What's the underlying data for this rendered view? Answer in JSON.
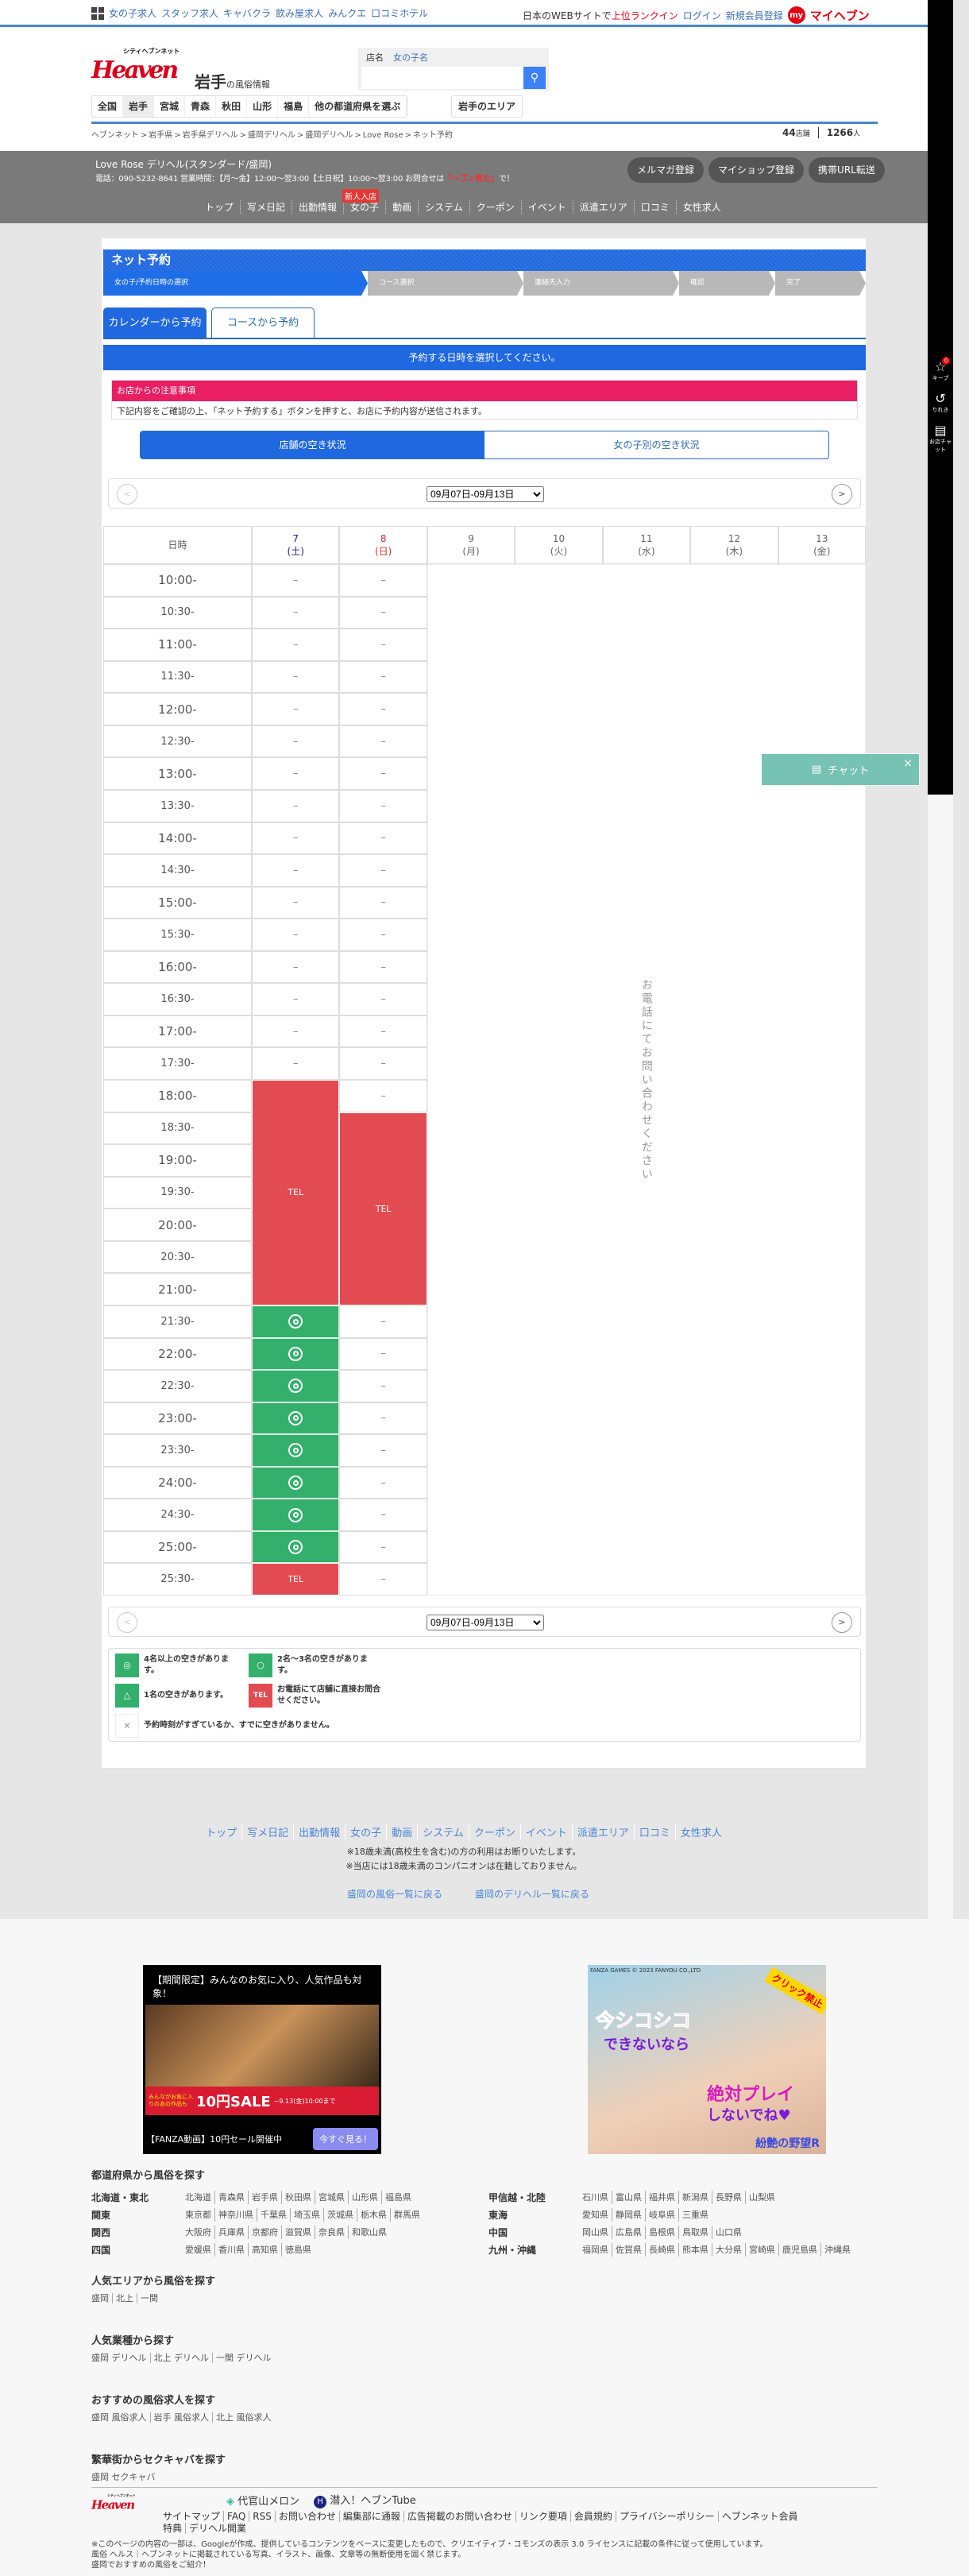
{
  "topbar": {
    "links": [
      "女の子求人",
      "スタッフ求人",
      "キャバクラ",
      "飲み屋求人",
      "みんクエ",
      "口コミホテル"
    ],
    "ranking_prefix": "日本のWEBサイトで",
    "ranking_highlight": "上位ランクイン",
    "login": "ログイン",
    "register": "新規会員登録",
    "my_badge": "my",
    "my_heaven": "マイヘブン"
  },
  "header": {
    "logo_small": "シティヘブンネット",
    "logo_text": "Heaven",
    "pref_name": "岩手",
    "pref_suffix": "の風俗情報",
    "search_tabs": [
      "店名",
      "女の子名"
    ],
    "search_value": "",
    "prefs": [
      "全国",
      "岩手",
      "宮城",
      "青森",
      "秋田",
      "山形",
      "福島",
      "他の都道府県を選ぶ"
    ],
    "area_button": "岩手のエリア",
    "breadcrumb": [
      "ヘブンネット",
      "岩手県",
      "岩手県デリヘル",
      "盛岡デリヘル",
      "盛岡デリヘル",
      "Love Rose",
      "ネット予約"
    ],
    "shop_count": "44",
    "shop_unit": "店舗",
    "girl_count": "1266",
    "girl_unit": "人"
  },
  "shop": {
    "name": "Love Rose デリヘル(スタンダード/盛岡)",
    "info": "電話：090-5232-8641 営業時間：【月〜金】12:00〜翌3:00【土日祝】10:00〜翌3:00 お問合せは",
    "info_highlight": "「ヘブン見た」",
    "info_end": "で！",
    "buttons": [
      "メルマガ登録",
      "マイショップ登録",
      "携帯URL転送"
    ],
    "nav": [
      "トップ",
      "写メ日記",
      "出勤情報",
      "女の子",
      "動画",
      "システム",
      "クーポン",
      "イベント",
      "派遣エリア",
      "口コミ",
      "女性求人"
    ],
    "new_badge": "新人入店"
  },
  "sidebar": {
    "keep": "キープ",
    "keep_count": "0",
    "history": "りれき",
    "chat": "お店チャット"
  },
  "chat_widget": {
    "label": "チャット",
    "close": "×"
  },
  "booking": {
    "title": "ネット予約",
    "steps": [
      "女の子/予約日時の選択",
      "コース選択",
      "連絡先入力",
      "確認",
      "完了"
    ],
    "tabs": [
      "カレンダーから予約",
      "コースから予約"
    ],
    "select_prompt": "予約する日時を選択してください。",
    "notice_title": "お店からの注意事項",
    "notice_body": "下記内容をご確認の上、「ネット予約する」ボタンを押すと、お店に予約内容が送信されます。",
    "toggle": [
      "店舗の空き状況",
      "女の子別の空き状況"
    ],
    "week_select": "09月07日-09月13日",
    "prev": "<",
    "next": ">",
    "calendar": {
      "time_header": "日時",
      "days": [
        {
          "day": "7",
          "dow": "(土)",
          "color": "#1a237e"
        },
        {
          "day": "8",
          "dow": "(日)",
          "color": "#d32f2f"
        },
        {
          "day": "9",
          "dow": "(月)",
          "color": "#666"
        },
        {
          "day": "10",
          "dow": "(火)",
          "color": "#666"
        },
        {
          "day": "11",
          "dow": "(水)",
          "color": "#666"
        },
        {
          "day": "12",
          "dow": "(木)",
          "color": "#666"
        },
        {
          "day": "13",
          "dow": "(金)",
          "color": "#666"
        }
      ],
      "times": [
        "10:00-",
        "10:30-",
        "11:00-",
        "11:30-",
        "12:00-",
        "12:30-",
        "13:00-",
        "13:30-",
        "14:00-",
        "14:30-",
        "15:00-",
        "15:30-",
        "16:00-",
        "16:30-",
        "17:00-",
        "17:30-",
        "18:00-",
        "18:30-",
        "19:00-",
        "19:30-",
        "20:00-",
        "20:30-",
        "21:00-",
        "21:30-",
        "22:00-",
        "22:30-",
        "23:00-",
        "23:30-",
        "24:00-",
        "24:30-",
        "25:00-",
        "25:30-"
      ],
      "status": [
        [
          "–",
          "–",
          "–",
          "–",
          "–",
          "–",
          "–",
          "–",
          "–",
          "–",
          "–",
          "–",
          "–",
          "–",
          "–",
          "–",
          "TEL",
          "TEL",
          "TEL",
          "TEL",
          "TEL",
          "TEL",
          "TEL",
          "◎",
          "◎",
          "◎",
          "◎",
          "◎",
          "◎",
          "◎",
          "◎",
          "TEL"
        ],
        [
          "–",
          "–",
          "–",
          "–",
          "–",
          "–",
          "–",
          "–",
          "–",
          "–",
          "–",
          "–",
          "–",
          "–",
          "–",
          "–",
          "–",
          "TEL",
          "TEL",
          "TEL",
          "TEL",
          "TEL",
          "TEL",
          "–",
          "–",
          "–",
          "–",
          "–",
          "–",
          "–",
          "–",
          "–"
        ]
      ],
      "phone_only": "お電話にてお問い合わせください",
      "colors": {
        "tel": "#e34b52",
        "available": "#34b06c"
      }
    },
    "legend": [
      {
        "symbol": "◎",
        "text": "4名以上の空きがあります。"
      },
      {
        "symbol": "○",
        "text": "2名〜3名の空きがあります。"
      },
      {
        "symbol": "△",
        "text": "1名の空きがあります。"
      },
      {
        "symbol": "TEL",
        "text": "お電話にて店舗に直接お問合せください。"
      },
      {
        "symbol": "×",
        "text": "予約時刻がすぎているか、すでに空きがありません。"
      }
    ]
  },
  "footer": {
    "nav": [
      "トップ",
      "写メ日記",
      "出勤情報",
      "女の子",
      "動画",
      "システム",
      "クーポン",
      "イベント",
      "派遣エリア",
      "口コミ",
      "女性求人"
    ],
    "warning1": "※18歳未満(高校生を含む)の方の利用はお断りいたします。",
    "warning2": "※当店には18歳未満のコンパニオンは在籍しておりません。",
    "back_fuzoku": "盛岡の風俗一覧に戻る",
    "back_deli": "盛岡のデリヘル一覧に戻る",
    "ad1": {
      "headline": "【期間限定】みんなのお気に入り、人気作品も対象！",
      "sale": "10円SALE",
      "sale_sub": "みんながお気に入りのあの作品も",
      "date": "~9.13(金)10:00まで",
      "caption": "【FANZA動画】10円セール開催中",
      "cta": "今すぐ見る！"
    },
    "ad2": {
      "brand": "FANZA GAMES © 2023 FANYOU CO.,LTD",
      "ribbon": "クリック禁止",
      "line1": "今シコシコ",
      "line2": "できないなら",
      "line3": "絶対プレイ",
      "line4": "しないでね♥",
      "title": "紛艶の野望R"
    },
    "pref_title": "都道府県から風俗を探す",
    "regions": [
      {
        "name": "北海道・東北",
        "prefs": [
          "北海道",
          "青森県",
          "岩手県",
          "秋田県",
          "宮城県",
          "山形県",
          "福島県"
        ]
      },
      {
        "name": "関東",
        "prefs": [
          "東京都",
          "神奈川県",
          "千葉県",
          "埼玉県",
          "茨城県",
          "栃木県",
          "群馬県"
        ]
      },
      {
        "name": "関西",
        "prefs": [
          "大阪府",
          "兵庫県",
          "京都府",
          "滋賀県",
          "奈良県",
          "和歌山県"
        ]
      },
      {
        "name": "四国",
        "prefs": [
          "愛媛県",
          "香川県",
          "高知県",
          "徳島県"
        ]
      },
      {
        "name": "甲信越・北陸",
        "prefs": [
          "石川県",
          "富山県",
          "福井県",
          "新潟県",
          "長野県",
          "山梨県"
        ]
      },
      {
        "name": "東海",
        "prefs": [
          "愛知県",
          "静岡県",
          "岐阜県",
          "三重県"
        ]
      },
      {
        "name": "中国",
        "prefs": [
          "岡山県",
          "広島県",
          "島根県",
          "鳥取県",
          "山口県"
        ]
      },
      {
        "name": "九州・沖縄",
        "prefs": [
          "福岡県",
          "佐賀県",
          "長崎県",
          "熊本県",
          "大分県",
          "宮崎県",
          "鹿児島県",
          "沖縄県"
        ]
      }
    ],
    "sections": [
      {
        "title": "人気エリアから風俗を探す",
        "links": [
          "盛岡",
          "北上",
          "一関"
        ]
      },
      {
        "title": "人気業種から探す",
        "links": [
          "盛岡 デリヘル",
          "北上 デリヘル",
          "一関 デリヘル"
        ]
      },
      {
        "title": "おすすめの風俗求人を探す",
        "links": [
          "盛岡 風俗求人",
          "岩手 風俗求人",
          "北上 風俗求人"
        ]
      },
      {
        "title": "繁華街からセクキャバを探す",
        "links": [
          "盛岡 セクキャバ"
        ]
      }
    ],
    "partners": [
      "代官山メロン",
      "潜入！ヘブンTube"
    ],
    "links": [
      "サイトマップ",
      "FAQ",
      "RSS",
      "お問い合わせ",
      "編集部に通報",
      "広告掲載のお問い合わせ",
      "リンク要項",
      "会員規約",
      "プライバシーポリシー",
      "ヘブンネット会員特典",
      "デリヘル開業"
    ],
    "note1": "※このページの内容の一部は、Googleが作成、提供しているコンテンツをベースに変更したもので、クリエイティブ・コモンズの表示 3.0 ライセンスに記載の条件に従って使用しています。",
    "note2": "風俗 ヘルス｜ヘブンネットに掲載されている写真、イラスト、画像、文章等の無断使用を固く禁じます。",
    "note3": "盛岡でおすすめの風俗をご紹介！"
  }
}
